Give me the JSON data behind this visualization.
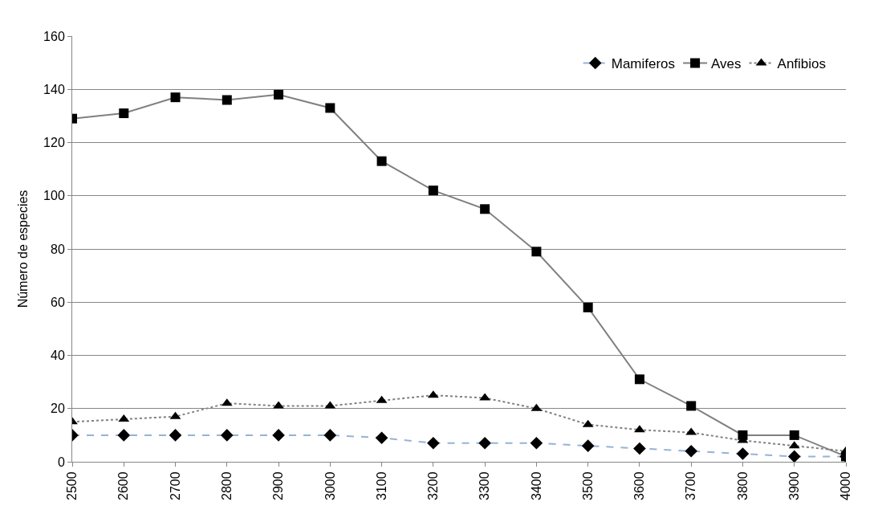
{
  "chart_data": {
    "type": "line",
    "ylabel": "Número de especies",
    "x": [
      2500,
      2600,
      2700,
      2800,
      2900,
      3000,
      3100,
      3200,
      3300,
      3400,
      3500,
      3600,
      3700,
      3800,
      3900,
      4000
    ],
    "xlim": [
      2500,
      4000
    ],
    "xticks": [
      2500,
      2600,
      2700,
      2800,
      2900,
      3000,
      3100,
      3200,
      3300,
      3400,
      3500,
      3600,
      3700,
      3800,
      3900,
      4000
    ],
    "ylim": [
      0,
      160
    ],
    "yticks": [
      0,
      20,
      40,
      60,
      80,
      100,
      120,
      140,
      160
    ],
    "grid": "y",
    "legend": "top right",
    "series": [
      {
        "name": "Mamiferos",
        "color": "#95b3d7",
        "line_style": "dashed",
        "marker": "diamond",
        "values": [
          10,
          10,
          10,
          10,
          10,
          10,
          9,
          7,
          7,
          7,
          6,
          5,
          4,
          3,
          2,
          2
        ]
      },
      {
        "name": "Aves",
        "color": "#808080",
        "line_style": "solid",
        "marker": "square",
        "values": [
          129,
          131,
          137,
          136,
          138,
          133,
          113,
          102,
          95,
          79,
          58,
          31,
          21,
          10,
          10,
          2
        ]
      },
      {
        "name": "Anfibios",
        "color": "#808080",
        "line_style": "dotted",
        "marker": "triangle",
        "values": [
          15,
          16,
          17,
          22,
          21,
          21,
          23,
          25,
          24,
          20,
          14,
          12,
          11,
          8,
          6,
          4
        ]
      }
    ]
  }
}
